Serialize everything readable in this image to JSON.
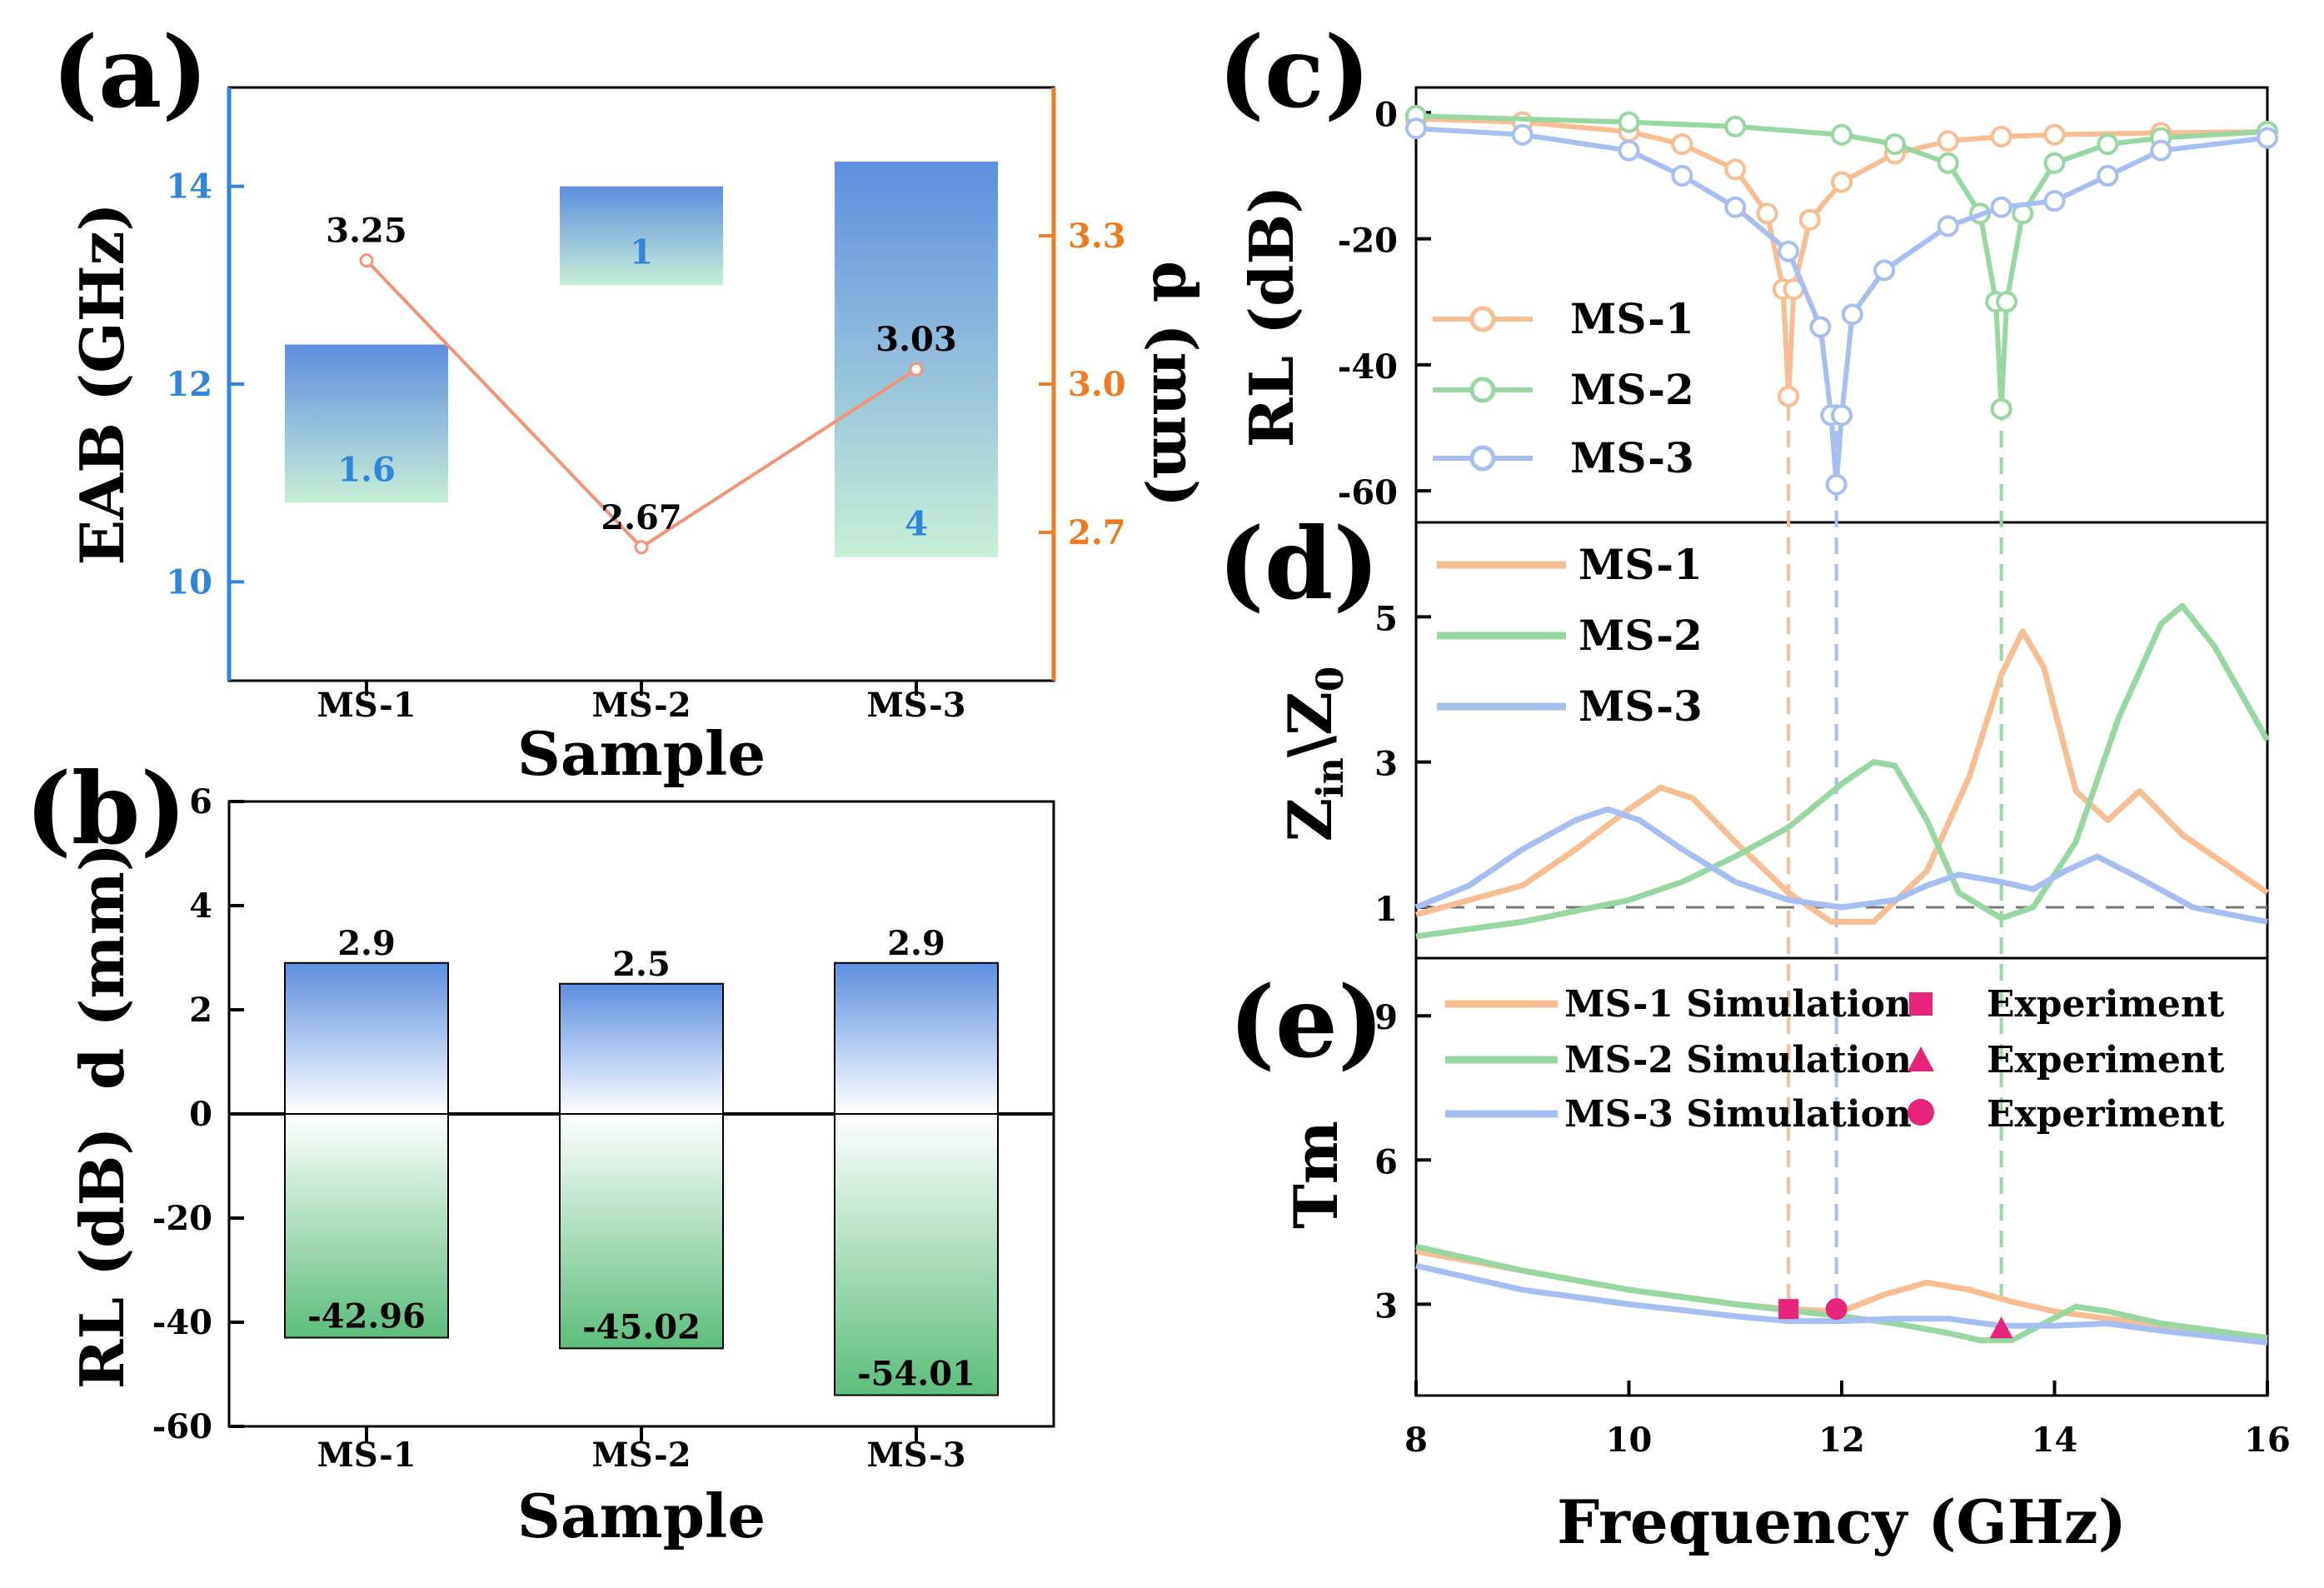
{
  "colors": {
    "ms1": "#F7BE93",
    "ms2": "#98D6A2",
    "ms3": "#A7BFF0",
    "blue_axis": "#2E86DE",
    "orange_axis": "#F07B1F",
    "marker": "#E8237A",
    "bar_blue": "#5B8FE0",
    "bar_green": "#5BBE7C",
    "bar_light_green": "#C8EFD6",
    "dline": "#F4937A"
  },
  "chart_data": [
    {
      "panel": "(a)",
      "type": "bar",
      "categories": [
        "MS-1",
        "MS-2",
        "MS-3"
      ],
      "floating_bars": [
        {
          "category": "MS-1",
          "low": 10.8,
          "high": 12.4,
          "label": "1.6"
        },
        {
          "category": "MS-2",
          "low": 13.0,
          "high": 14.0,
          "label": "1"
        },
        {
          "category": "MS-3",
          "low": 10.25,
          "high": 14.25,
          "label": "4"
        }
      ],
      "line": {
        "name": "d",
        "values": [
          3.25,
          2.67,
          3.03
        ],
        "labels": [
          "3.25",
          "2.67",
          "3.03"
        ]
      },
      "xlabel": "Sample",
      "ylabel": "EAB (GHz)",
      "y2label": "d (mm)",
      "ylim": [
        9,
        15
      ],
      "y2lim": [
        2.4,
        3.6
      ],
      "yticks": [
        "10",
        "12",
        "14"
      ],
      "y2ticks": [
        "2.7",
        "3.0",
        "3.3"
      ]
    },
    {
      "panel": "(b)",
      "type": "bar",
      "categories": [
        "MS-1",
        "MS-2",
        "MS-3"
      ],
      "series": [
        {
          "name": "d (mm)",
          "values": [
            2.9,
            2.5,
            2.9
          ],
          "labels": [
            "2.9",
            "2.5",
            "2.9"
          ]
        },
        {
          "name": "RL (dB)",
          "values": [
            -42.96,
            -45.02,
            -54.01
          ],
          "labels": [
            "-42.96",
            "-45.02",
            "-54.01"
          ]
        }
      ],
      "xlabel": "Sample",
      "ylabel_top": "d (mm)",
      "ylabel_bottom": "RL (dB)",
      "ylim": [
        -60,
        6
      ],
      "yticks": [
        "-60",
        "-40",
        "-20",
        "0",
        "2",
        "4",
        "6"
      ]
    },
    {
      "panel": "(c)",
      "type": "line",
      "ylabel": "RL (dB)",
      "ylim": [
        -65,
        4
      ],
      "yticks": [
        "0",
        "-20",
        "-40",
        "-60"
      ],
      "xlim": [
        8,
        16
      ],
      "series": [
        {
          "name": "MS-1",
          "x": [
            8,
            9,
            10,
            10.5,
            11,
            11.3,
            11.45,
            11.5,
            11.55,
            11.7,
            12,
            12.5,
            13,
            13.5,
            14,
            15,
            16
          ],
          "y": [
            -1,
            -1.5,
            -3,
            -5,
            -9,
            -16,
            -28,
            -45,
            -28,
            -17,
            -11,
            -6.5,
            -4.5,
            -3.8,
            -3.5,
            -3.2,
            -3
          ]
        },
        {
          "name": "MS-2",
          "x": [
            8,
            10,
            11,
            12,
            12.5,
            13,
            13.3,
            13.45,
            13.5,
            13.55,
            13.7,
            14,
            14.5,
            15,
            16
          ],
          "y": [
            -0.5,
            -1.5,
            -2.2,
            -3.5,
            -5,
            -8,
            -16,
            -30,
            -47,
            -30,
            -16,
            -8,
            -5,
            -4,
            -3
          ]
        },
        {
          "name": "MS-3",
          "x": [
            8,
            9,
            10,
            10.5,
            11,
            11.5,
            11.8,
            11.9,
            11.95,
            12,
            12.1,
            12.4,
            13,
            13.5,
            14,
            14.5,
            15,
            16
          ],
          "y": [
            -2.5,
            -3.5,
            -6,
            -10,
            -15,
            -22,
            -34,
            -48,
            -59,
            -48,
            -32,
            -25,
            -18,
            -15,
            -14,
            -10,
            -6,
            -4
          ]
        }
      ]
    },
    {
      "panel": "(d)",
      "type": "line",
      "ylabel_main": "Z",
      "ylabel_sub1": "in",
      "ylabel_mid": "\\Z",
      "ylabel_sub2": "0",
      "ylim": [
        0.3,
        6.3
      ],
      "yticks": [
        "1",
        "3",
        "5"
      ],
      "xlim": [
        8,
        16
      ],
      "reference_line": 1,
      "series": [
        {
          "name": "MS-1",
          "x": [
            8,
            9,
            9.5,
            10,
            10.3,
            10.6,
            11,
            11.5,
            11.9,
            12.3,
            12.8,
            13.2,
            13.5,
            13.7,
            13.9,
            14.2,
            14.5,
            14.8,
            15.2,
            16
          ],
          "y": [
            0.9,
            1.3,
            1.8,
            2.35,
            2.65,
            2.5,
            1.9,
            1.2,
            0.8,
            0.8,
            1.5,
            2.8,
            4.2,
            4.8,
            4.3,
            2.6,
            2.2,
            2.6,
            2,
            1.2
          ]
        },
        {
          "name": "MS-2",
          "x": [
            8,
            9,
            10,
            10.5,
            11,
            11.5,
            12,
            12.3,
            12.5,
            12.8,
            13.1,
            13.5,
            13.8,
            14.2,
            14.6,
            15,
            15.2,
            15.5,
            16
          ],
          "y": [
            0.6,
            0.8,
            1.1,
            1.35,
            1.7,
            2.1,
            2.7,
            3,
            2.95,
            2.2,
            1.2,
            0.85,
            1,
            1.9,
            3.6,
            4.9,
            5.15,
            4.6,
            3.3
          ]
        },
        {
          "name": "MS-3",
          "x": [
            8,
            8.5,
            9,
            9.5,
            9.8,
            10.1,
            10.5,
            11,
            11.5,
            12,
            12.5,
            12.8,
            13.1,
            13.5,
            13.8,
            14.1,
            14.4,
            14.8,
            15.3,
            16
          ],
          "y": [
            1,
            1.3,
            1.8,
            2.2,
            2.35,
            2.2,
            1.8,
            1.35,
            1.1,
            1,
            1.1,
            1.3,
            1.45,
            1.35,
            1.25,
            1.5,
            1.7,
            1.4,
            1,
            0.8
          ]
        }
      ]
    },
    {
      "panel": "(e)",
      "type": "line",
      "xlabel": "Frequency (GHz)",
      "ylabel": "Tm",
      "ylim": [
        1.1,
        10.2
      ],
      "yticks": [
        "3",
        "6",
        "9"
      ],
      "xticks": [
        "8",
        "10",
        "12",
        "14",
        "16"
      ],
      "xlim": [
        8,
        16
      ],
      "series": [
        {
          "name": "MS-1 Simulation",
          "x": [
            8,
            9,
            10,
            11,
            11.5,
            12,
            12.4,
            12.8,
            13.2,
            13.6,
            14,
            15,
            16
          ],
          "y": [
            4.1,
            3.7,
            3.3,
            3,
            2.9,
            2.85,
            3.2,
            3.45,
            3.3,
            3.05,
            2.85,
            2.55,
            2.3
          ]
        },
        {
          "name": "MS-2 Simulation",
          "x": [
            8,
            9,
            10,
            11,
            12,
            12.5,
            13,
            13.3,
            13.6,
            13.9,
            14.2,
            14.5,
            15,
            16
          ],
          "y": [
            4.2,
            3.7,
            3.3,
            3,
            2.75,
            2.6,
            2.4,
            2.25,
            2.25,
            2.6,
            2.95,
            2.85,
            2.6,
            2.3
          ]
        },
        {
          "name": "MS-3 Simulation",
          "x": [
            8,
            9,
            10,
            11,
            11.5,
            12,
            12.5,
            13,
            13.5,
            14,
            14.5,
            15,
            16
          ],
          "y": [
            3.8,
            3.3,
            3,
            2.75,
            2.65,
            2.65,
            2.7,
            2.7,
            2.55,
            2.55,
            2.6,
            2.45,
            2.2
          ]
        }
      ],
      "experiment": [
        {
          "name": "Experiment",
          "marker": "square",
          "x": 11.5,
          "y": 2.9
        },
        {
          "name": "Experiment",
          "marker": "triangle",
          "x": 13.5,
          "y": 2.5
        },
        {
          "name": "Experiment",
          "marker": "circle",
          "x": 11.95,
          "y": 2.9
        }
      ]
    }
  ],
  "panel_labels": [
    "(a)",
    "(b)",
    "(c)",
    "(d)",
    "(e)"
  ],
  "vertical_markers": [
    {
      "x": 11.5,
      "series": "MS-1"
    },
    {
      "x": 11.95,
      "series": "MS-3"
    },
    {
      "x": 13.5,
      "series": "MS-2"
    }
  ]
}
